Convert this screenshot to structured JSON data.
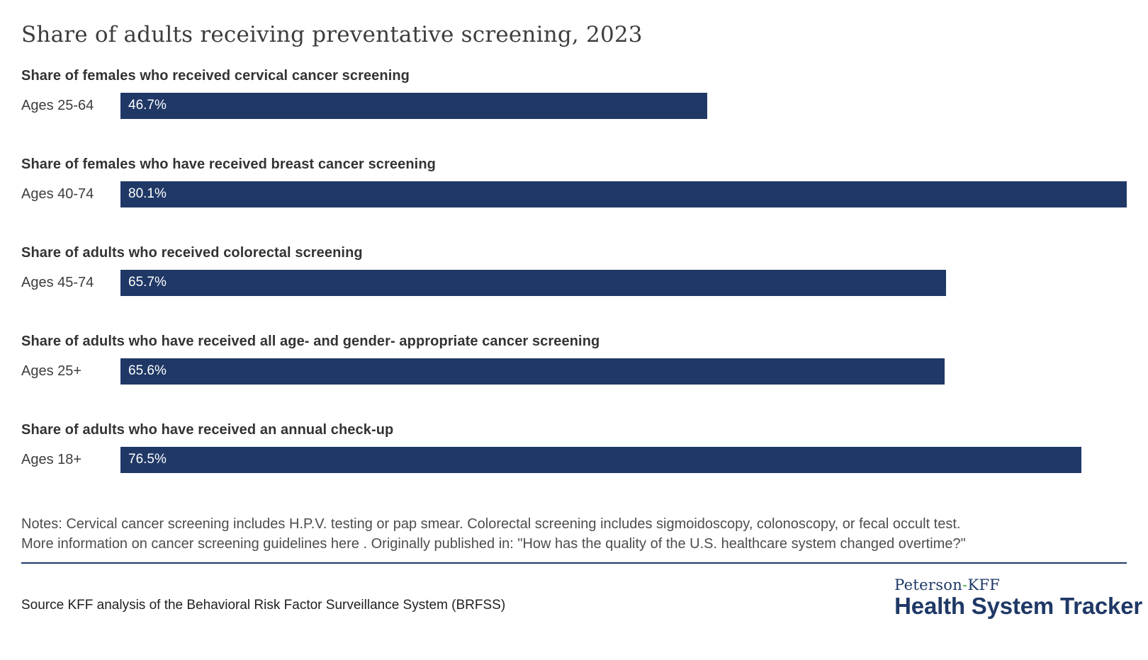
{
  "page": {
    "title": "Share of adults receiving preventative screening, 2023"
  },
  "chart_data": {
    "type": "bar",
    "orientation": "horizontal",
    "title": "Share of adults receiving preventative screening, 2023",
    "unit": "percent",
    "xlim": [
      0,
      80.1
    ],
    "xmax": 80.1,
    "grid": false,
    "bar_color": "#1f3866",
    "value_text_color": "#ffffff",
    "bars": [
      {
        "group_label": "Share of females who received cervical cancer screening",
        "category": "Ages 25-64",
        "value": 46.7,
        "value_label": "46.7%"
      },
      {
        "group_label": "Share of females who have received breast cancer screening",
        "category": "Ages 40-74",
        "value": 80.1,
        "value_label": "80.1%"
      },
      {
        "group_label": "Share of adults who received colorectal screening",
        "category": "Ages 45-74",
        "value": 65.7,
        "value_label": "65.7%"
      },
      {
        "group_label": "Share of adults who have received all age- and gender- appropriate cancer screening",
        "category": "Ages 25+",
        "value": 65.6,
        "value_label": "65.6%"
      },
      {
        "group_label": "Share of adults who have received an annual check-up",
        "category": "Ages 18+",
        "value": 76.5,
        "value_label": "76.5%"
      }
    ]
  },
  "notes": {
    "line1": "Notes: Cervical cancer screening includes H.P.V. testing or pap smear. Colorectal screening includes sigmoidoscopy, colonoscopy, or fecal occult test.",
    "line2": "More information on cancer screening guidelines here . Originally published in: \"How has the quality of the U.S. healthcare system changed overtime?\""
  },
  "footer": {
    "source": "Source KFF analysis of the Behavioral Risk Factor Surveillance System (BRFSS)",
    "logo": {
      "line1_name": "Peterson",
      "line1_hyphen": "-",
      "line1_org": "KFF",
      "line2": "Health System Tracker",
      "navy_color": "#1f3866",
      "green_color": "#3fae49"
    }
  }
}
